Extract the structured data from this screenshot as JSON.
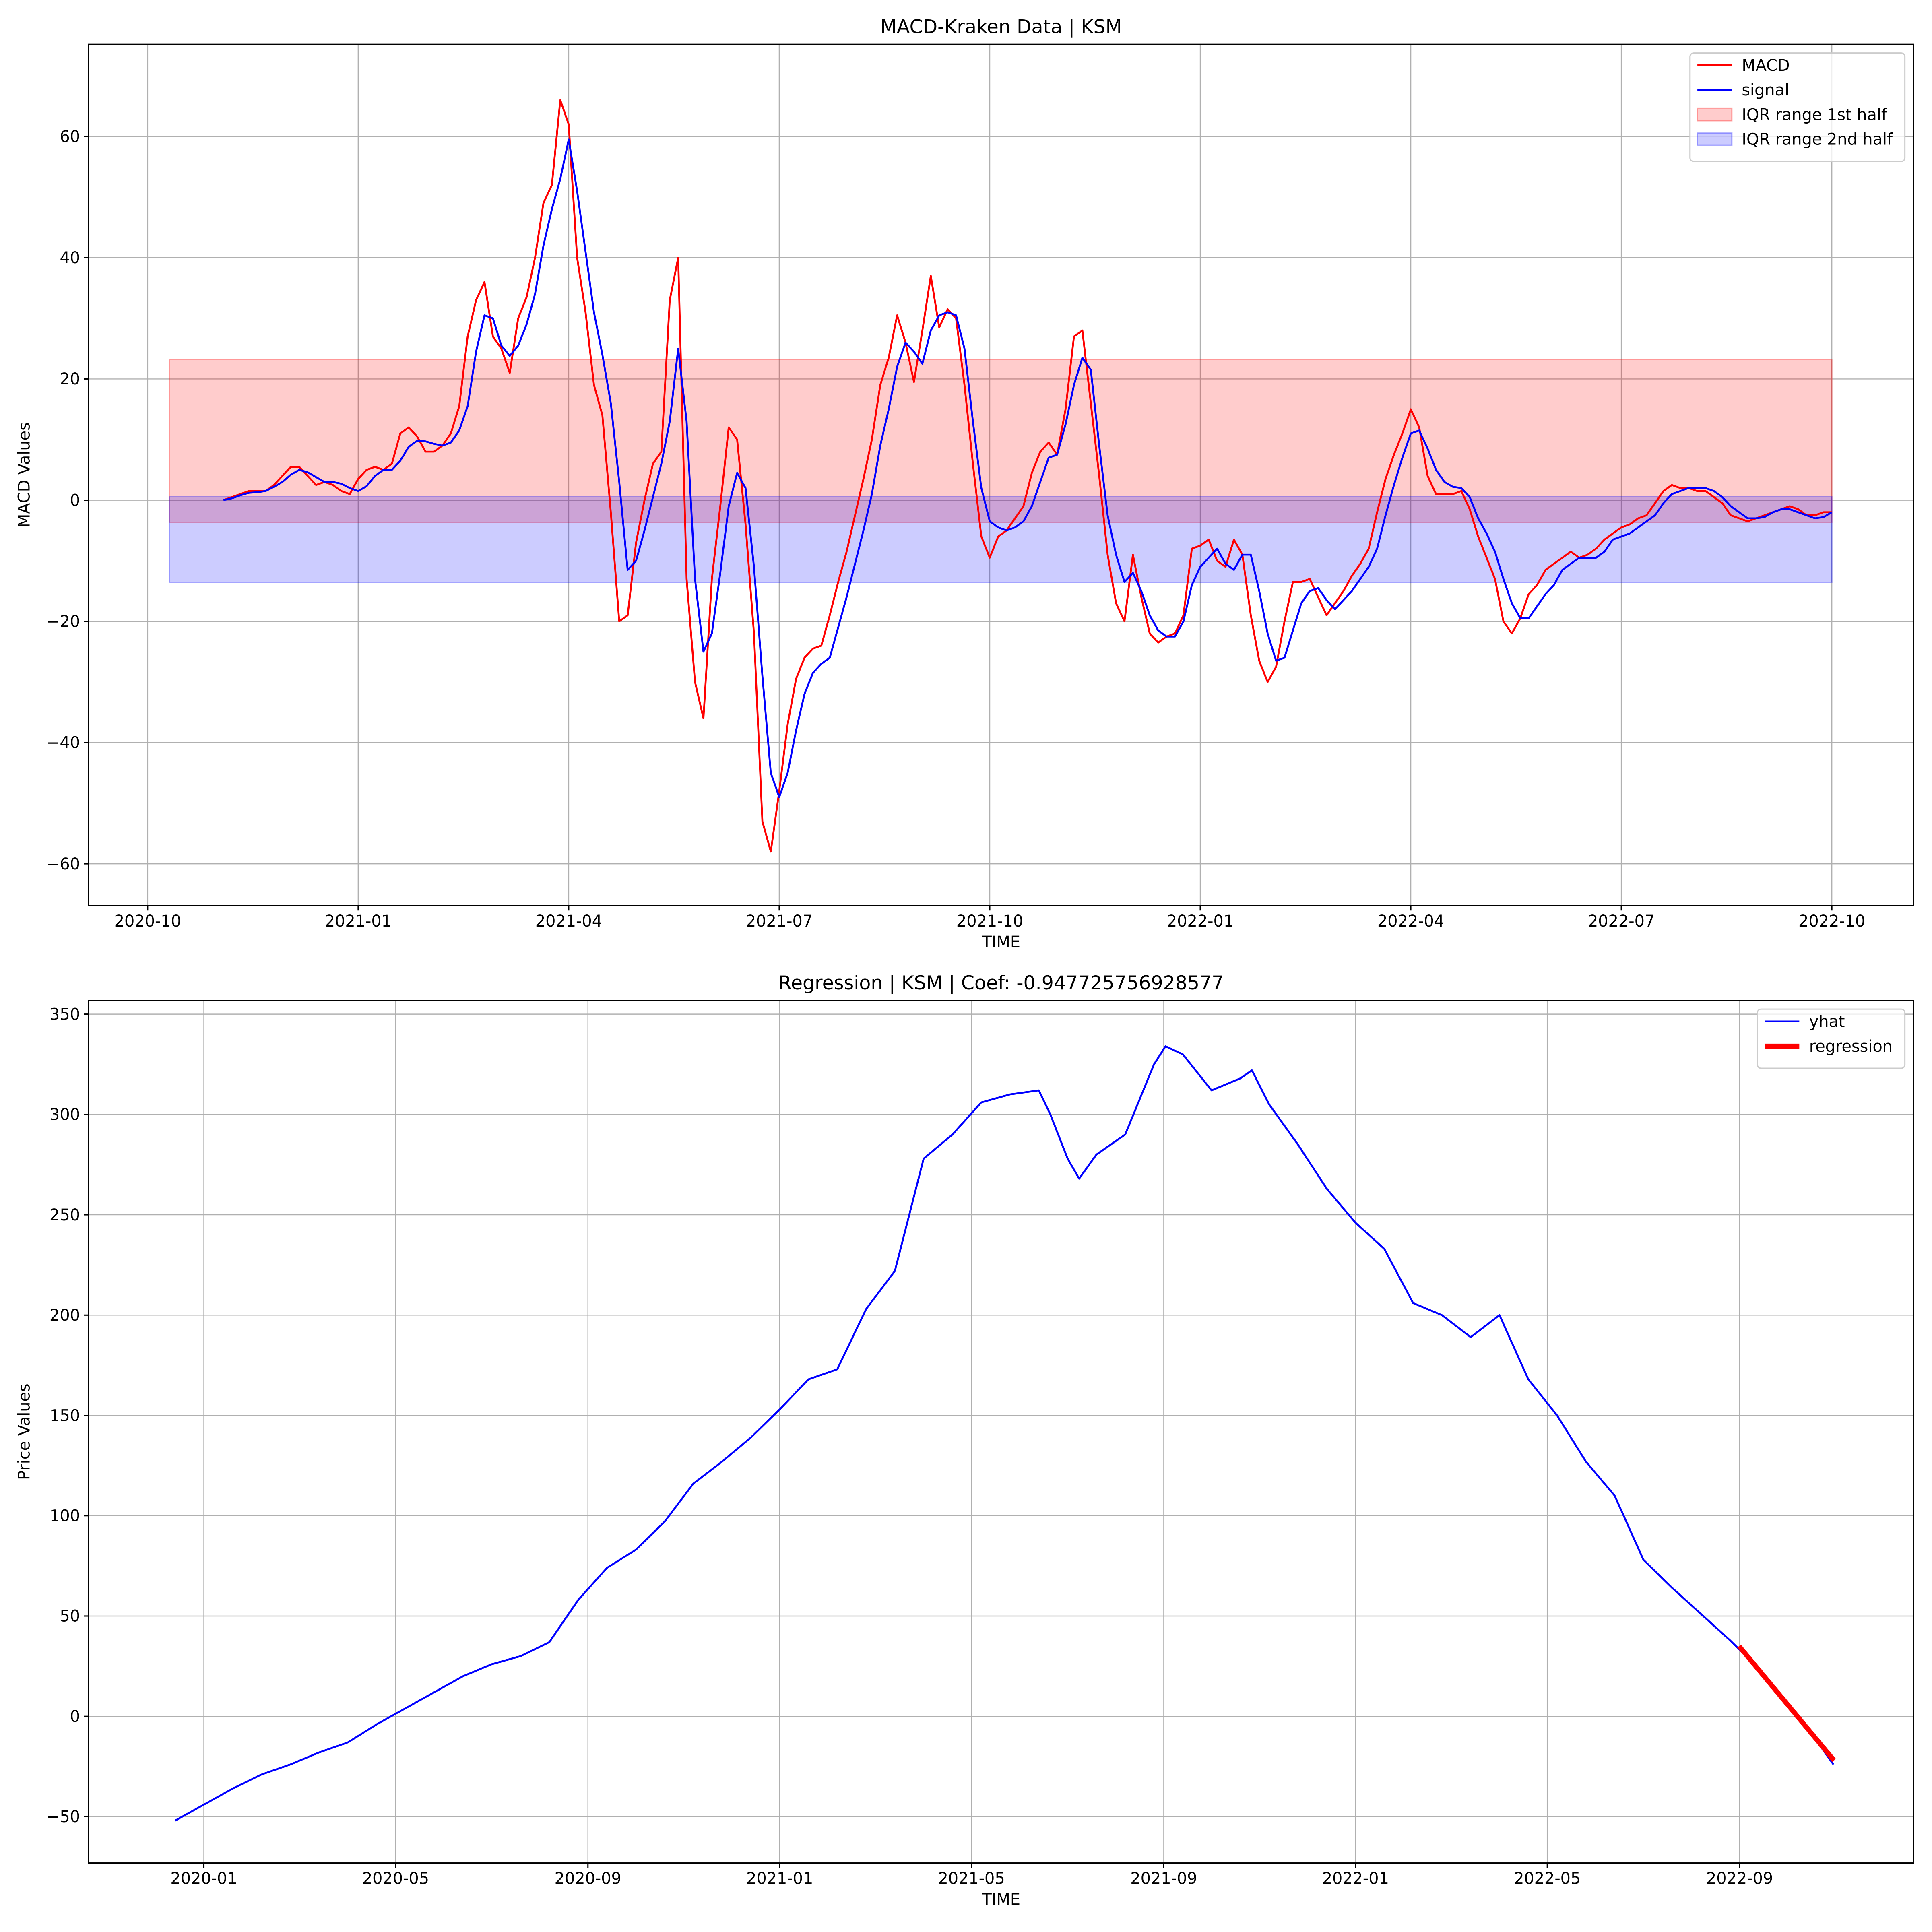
{
  "chart_data": [
    {
      "type": "line",
      "title": "MACD-Kraken Data | KSM",
      "xlabel": "TIME",
      "ylabel": "MACD Values",
      "grid": true,
      "legend": "upper right",
      "xlim": [
        2020.68,
        2022.847
      ],
      "ylim": [
        -66.9,
        75.2
      ],
      "xticks": [
        {
          "value": 2020.75,
          "label": "2020-10"
        },
        {
          "value": 2021,
          "label": "2021-01"
        },
        {
          "value": 2021.25,
          "label": "2021-04"
        },
        {
          "value": 2021.5,
          "label": "2021-07"
        },
        {
          "value": 2021.75,
          "label": "2021-10"
        },
        {
          "value": 2022,
          "label": "2022-01"
        },
        {
          "value": 2022.25,
          "label": "2022-04"
        },
        {
          "value": 2022.5,
          "label": "2022-07"
        },
        {
          "value": 2022.75,
          "label": "2022-10"
        }
      ],
      "yticks": [
        {
          "value": -60,
          "label": "−60"
        },
        {
          "value": -40,
          "label": "−40"
        },
        {
          "value": -20,
          "label": "−20"
        },
        0,
        20,
        40,
        60
      ],
      "x": [
        2020.84,
        2020.85,
        2020.86,
        2020.87,
        2020.88,
        2020.89,
        2020.9,
        2020.91,
        2020.92,
        2020.93,
        2020.94,
        2020.95,
        2020.96,
        2020.97,
        2020.98,
        2020.99,
        2021.0,
        2021.01,
        2021.02,
        2021.03,
        2021.04,
        2021.05,
        2021.06,
        2021.07,
        2021.08,
        2021.09,
        2021.1,
        2021.11,
        2021.12,
        2021.13,
        2021.14,
        2021.15,
        2021.16,
        2021.17,
        2021.18,
        2021.19,
        2021.2,
        2021.21,
        2021.22,
        2021.23,
        2021.24,
        2021.25,
        2021.26,
        2021.27,
        2021.28,
        2021.29,
        2021.3,
        2021.31,
        2021.32,
        2021.33,
        2021.34,
        2021.35,
        2021.36,
        2021.37,
        2021.38,
        2021.39,
        2021.4,
        2021.41,
        2021.42,
        2021.43,
        2021.44,
        2021.45,
        2021.46,
        2021.47,
        2021.48,
        2021.49,
        2021.5,
        2021.51,
        2021.52,
        2021.53,
        2021.54,
        2021.55,
        2021.56,
        2021.57,
        2021.58,
        2021.59,
        2021.6,
        2021.61,
        2021.62,
        2021.63,
        2021.64,
        2021.65,
        2021.66,
        2021.67,
        2021.68,
        2021.69,
        2021.7,
        2021.71,
        2021.72,
        2021.73,
        2021.74,
        2021.75,
        2021.76,
        2021.77,
        2021.78,
        2021.79,
        2021.8,
        2021.81,
        2021.82,
        2021.83,
        2021.84,
        2021.85,
        2021.86,
        2021.87,
        2021.88,
        2021.89,
        2021.9,
        2021.91,
        2021.92,
        2021.93,
        2021.94,
        2021.95,
        2021.96,
        2021.97,
        2021.98,
        2021.99,
        2022.0,
        2022.01,
        2022.02,
        2022.03,
        2022.04,
        2022.05,
        2022.06,
        2022.07,
        2022.08,
        2022.09,
        2022.1,
        2022.11,
        2022.12,
        2022.13,
        2022.14,
        2022.15,
        2022.16,
        2022.17,
        2022.18,
        2022.19,
        2022.2,
        2022.21,
        2022.22,
        2022.23,
        2022.24,
        2022.25,
        2022.26,
        2022.27,
        2022.28,
        2022.29,
        2022.3,
        2022.31,
        2022.32,
        2022.33,
        2022.34,
        2022.35,
        2022.36,
        2022.37,
        2022.38,
        2022.39,
        2022.4,
        2022.41,
        2022.42,
        2022.43,
        2022.44,
        2022.45,
        2022.46,
        2022.47,
        2022.48,
        2022.49,
        2022.5,
        2022.51,
        2022.52,
        2022.53,
        2022.54,
        2022.55,
        2022.56,
        2022.57,
        2022.58,
        2022.59,
        2022.6,
        2022.61,
        2022.62,
        2022.63,
        2022.64,
        2022.65,
        2022.66,
        2022.67,
        2022.68,
        2022.69,
        2022.7,
        2022.71,
        2022.72,
        2022.73,
        2022.74,
        2022.75
      ],
      "series": [
        {
          "name": "MACD",
          "color": "#ff0000",
          "linewidth": 1.5,
          "values": [
            0,
            0.5,
            1,
            1.5,
            1.5,
            1.5,
            2.5,
            4,
            5.5,
            5.5,
            4,
            2.5,
            3,
            2.5,
            1.5,
            1,
            3.5,
            5,
            5.5,
            5,
            6,
            11,
            12,
            10.5,
            8,
            8,
            9,
            11,
            15.5,
            27,
            33,
            36,
            27,
            25,
            21,
            30,
            33.5,
            40,
            49,
            52,
            66,
            62,
            40,
            31,
            19,
            14,
            -2,
            -20,
            -19,
            -7,
            0,
            6,
            8,
            33,
            40,
            -13,
            -30,
            -36,
            -13,
            -1,
            12,
            10,
            -4,
            -22,
            -53,
            -58,
            -48,
            -37,
            -29.5,
            -26,
            -24.5,
            -24,
            -19,
            -13.5,
            -8.5,
            -2.5,
            3.5,
            10,
            19,
            23.5,
            30.5,
            26,
            19.5,
            28,
            37,
            28.5,
            31.5,
            30,
            19,
            6,
            -6,
            -9.5,
            -6,
            -5,
            -3,
            -1,
            4.5,
            8,
            9.5,
            7.5,
            15,
            27,
            28,
            16,
            4,
            -9,
            -17,
            -20,
            -9,
            -16,
            -22,
            -23.5,
            -22.5,
            -22,
            -19,
            -8,
            -7.5,
            -6.5,
            -10,
            -11,
            -6.5,
            -9,
            -19,
            -26.5,
            -30,
            -27.5,
            -20,
            -13.5,
            -13.5,
            -13,
            -16,
            -19,
            -17,
            -15,
            -12.5,
            -10.5,
            -8,
            -2,
            3.5,
            7.5,
            11,
            15,
            12,
            4,
            1,
            1,
            1,
            1.5,
            -1.5,
            -6,
            -9.5,
            -13,
            -20,
            -22,
            -19.5,
            -15.5,
            -14,
            -11.5,
            -10.5,
            -9.5,
            -8.5,
            -9.5,
            -9,
            -8,
            -6.5,
            -5.5,
            -4.5,
            -4,
            -3,
            -2.5,
            -0.5,
            1.5,
            2.5,
            2,
            2,
            1.5,
            1.5,
            0.5,
            -0.5,
            -2.5,
            -3,
            -3.5,
            -3,
            -2.5,
            -2,
            -1.5,
            -1,
            -1.5,
            -2.5,
            -2.5,
            -2,
            -2
          ]
        },
        {
          "name": "signal",
          "color": "#0000ff",
          "linewidth": 1.5,
          "values": [
            0,
            0.3,
            0.8,
            1.2,
            1.3,
            1.5,
            2.2,
            3,
            4.2,
            5,
            4.6,
            3.8,
            3,
            3,
            2.7,
            2,
            1.5,
            2.3,
            4,
            5,
            5,
            6.5,
            8.8,
            9.8,
            9.7,
            9.3,
            9,
            9.5,
            11.5,
            15.5,
            24.5,
            30.5,
            30,
            25.5,
            23.8,
            25.5,
            29,
            34,
            42,
            48,
            53,
            59.5,
            51,
            41,
            31,
            24,
            16,
            3,
            -11.5,
            -10,
            -5,
            0.5,
            6,
            13,
            25,
            13,
            -13,
            -25,
            -22,
            -12,
            -1,
            4.5,
            2,
            -11,
            -29,
            -45,
            -49,
            -45,
            -38,
            -32,
            -28.5,
            -27,
            -26,
            -21,
            -16,
            -10.5,
            -5,
            1,
            9,
            15,
            22,
            26,
            24.5,
            22.5,
            28,
            30.5,
            31,
            30.5,
            25,
            13,
            2,
            -3.5,
            -4.5,
            -5,
            -4.5,
            -3.5,
            -1,
            3,
            7,
            7.5,
            12.5,
            19,
            23.5,
            21.5,
            9,
            -2.5,
            -9,
            -13.5,
            -12,
            -15,
            -19,
            -21.5,
            -22.5,
            -22.5,
            -20,
            -14,
            -11,
            -9.5,
            -8,
            -10.5,
            -11.5,
            -9,
            -9,
            -15,
            -22,
            -26.5,
            -26,
            -21.5,
            -17,
            -15,
            -14.5,
            -16.5,
            -18,
            -16.5,
            -15,
            -13,
            -11,
            -8,
            -2.5,
            2.5,
            7,
            11,
            11.5,
            8.5,
            5,
            3,
            2.2,
            2,
            0.5,
            -3,
            -5.5,
            -8.5,
            -13,
            -17,
            -19.5,
            -19.5,
            -17.5,
            -15.5,
            -14,
            -11.5,
            -10.5,
            -9.5,
            -9.5,
            -9.5,
            -8.5,
            -6.5,
            -6,
            -5.5,
            -4.5,
            -3.5,
            -2.5,
            -0.5,
            1,
            1.5,
            2,
            2,
            2,
            1.5,
            0.5,
            -1,
            -2,
            -3,
            -3,
            -2.8,
            -2,
            -1.5,
            -1.5,
            -2,
            -2.5,
            -3,
            -2.8,
            -2
          ]
        }
      ],
      "bands": [
        {
          "name": "IQR range 1st half",
          "color": "#ff0000",
          "alpha": 0.2,
          "x": [
            2020.776,
            2022.75
          ],
          "values": [
            -3.7,
            23.2
          ]
        },
        {
          "name": "IQR range 2nd half",
          "color": "#0000ff",
          "alpha": 0.2,
          "x": [
            2020.776,
            2022.75
          ],
          "values": [
            -13.6,
            0.6
          ]
        }
      ]
    },
    {
      "type": "line",
      "title": "Regression | KSM | Coef: -0.947725756928577",
      "xlabel": "TIME",
      "ylabel": "Price Values",
      "grid": true,
      "legend": "upper right",
      "xlim": [
        2019.8,
        2022.969
      ],
      "ylim": [
        -73.1,
        356.8
      ],
      "xticks": [
        {
          "value": 2020,
          "label": "2020-01"
        },
        {
          "value": 2020.333,
          "label": "2020-05"
        },
        {
          "value": 2020.667,
          "label": "2020-09"
        },
        {
          "value": 2021,
          "label": "2021-01"
        },
        {
          "value": 2021.333,
          "label": "2021-05"
        },
        {
          "value": 2021.667,
          "label": "2021-09"
        },
        {
          "value": 2022,
          "label": "2022-01"
        },
        {
          "value": 2022.333,
          "label": "2022-05"
        },
        {
          "value": 2022.667,
          "label": "2022-09"
        }
      ],
      "yticks": [
        {
          "value": -50,
          "label": "−50"
        },
        0,
        50,
        100,
        150,
        200,
        250,
        300,
        350
      ],
      "series": [
        {
          "name": "yhat",
          "color": "#0000ff",
          "linewidth": 1.5,
          "x": [
            2019.95,
            2020.0,
            2020.05,
            2020.1,
            2020.15,
            2020.2,
            2020.25,
            2020.3,
            2020.35,
            2020.4,
            2020.45,
            2020.5,
            2020.55,
            2020.6,
            2020.65,
            2020.7,
            2020.75,
            2020.8,
            2020.85,
            2020.9,
            2020.95,
            2021.0,
            2021.05,
            2021.1,
            2021.15,
            2021.2,
            2021.25,
            2021.3,
            2021.35,
            2021.4,
            2021.45,
            2021.47,
            2021.5,
            2021.52,
            2021.55,
            2021.6,
            2021.65,
            2021.67,
            2021.7,
            2021.75,
            2021.8,
            2021.82,
            2021.85,
            2021.9,
            2021.95,
            2022.0,
            2022.05,
            2022.1,
            2022.15,
            2022.2,
            2022.25,
            2022.3,
            2022.35,
            2022.4,
            2022.45,
            2022.5,
            2022.55,
            2022.6,
            2022.65,
            2022.7,
            2022.75,
            2022.8,
            2022.83
          ],
          "values": [
            -52,
            -44,
            -36,
            -29,
            -24,
            -18,
            -13,
            -4,
            4,
            12,
            20,
            26,
            30,
            37,
            58,
            74,
            83,
            97,
            116,
            127,
            139,
            153,
            168,
            173,
            203,
            222,
            278,
            290,
            306,
            310,
            312,
            300,
            278,
            268,
            280,
            290,
            325,
            334,
            330,
            312,
            318,
            322,
            305,
            285,
            263,
            246,
            233,
            206,
            200,
            189,
            200,
            168,
            150,
            127,
            110,
            78,
            64,
            51,
            38,
            24,
            6,
            -12,
            -24
          ]
        },
        {
          "name": "regression",
          "color": "#ff0000",
          "linewidth": 4,
          "x": [
            2022.666,
            2022.831
          ],
          "values": [
            35,
            -22
          ]
        }
      ]
    }
  ]
}
